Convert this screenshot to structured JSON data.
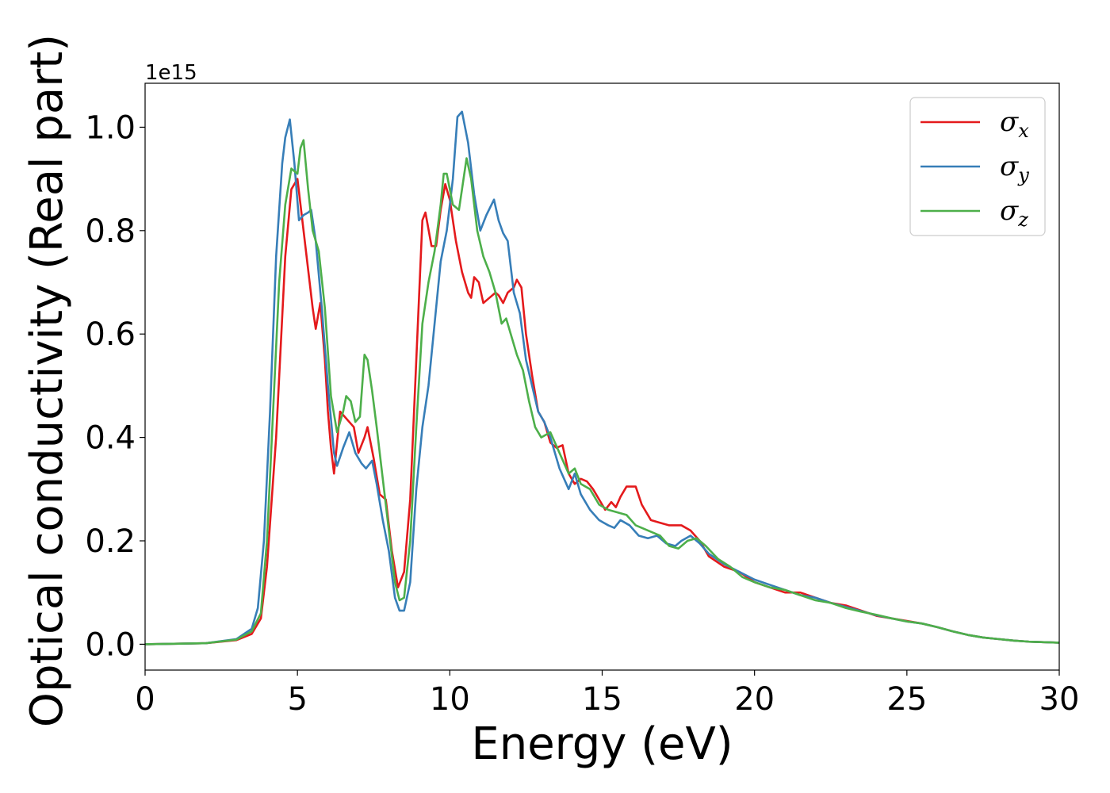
{
  "chart_data": {
    "type": "line",
    "xlabel": "Energy (eV)",
    "ylabel": "Optical conductivity (Real part)",
    "y_offset_text": "1e15",
    "xlim": [
      0,
      30
    ],
    "ylim": [
      -0.05,
      1.085
    ],
    "xticks": [
      0,
      5,
      10,
      15,
      20,
      25,
      30
    ],
    "yticks": [
      0.0,
      0.2,
      0.4,
      0.6,
      0.8,
      1.0
    ],
    "xtick_labels": [
      "0",
      "5",
      "10",
      "15",
      "20",
      "25",
      "30"
    ],
    "ytick_labels": [
      "0.0",
      "0.2",
      "0.4",
      "0.6",
      "0.8",
      "1.0"
    ],
    "grid": false,
    "legend_position": "top-right",
    "series": [
      {
        "name": "σ",
        "subscript": "x",
        "color": "#e41a1c",
        "points": [
          [
            0,
            0
          ],
          [
            2,
            0.002
          ],
          [
            3,
            0.008
          ],
          [
            3.5,
            0.02
          ],
          [
            3.8,
            0.05
          ],
          [
            4.0,
            0.15
          ],
          [
            4.3,
            0.4
          ],
          [
            4.6,
            0.75
          ],
          [
            4.8,
            0.88
          ],
          [
            5.0,
            0.9
          ],
          [
            5.2,
            0.8
          ],
          [
            5.5,
            0.65
          ],
          [
            5.6,
            0.61
          ],
          [
            5.75,
            0.66
          ],
          [
            5.9,
            0.55
          ],
          [
            6.0,
            0.45
          ],
          [
            6.1,
            0.38
          ],
          [
            6.2,
            0.33
          ],
          [
            6.4,
            0.45
          ],
          [
            6.55,
            0.44
          ],
          [
            6.7,
            0.43
          ],
          [
            6.85,
            0.42
          ],
          [
            7.0,
            0.37
          ],
          [
            7.2,
            0.4
          ],
          [
            7.3,
            0.42
          ],
          [
            7.5,
            0.36
          ],
          [
            7.7,
            0.29
          ],
          [
            7.9,
            0.28
          ],
          [
            8.1,
            0.18
          ],
          [
            8.3,
            0.11
          ],
          [
            8.5,
            0.14
          ],
          [
            8.7,
            0.28
          ],
          [
            8.9,
            0.55
          ],
          [
            9.1,
            0.82
          ],
          [
            9.2,
            0.835
          ],
          [
            9.4,
            0.77
          ],
          [
            9.55,
            0.77
          ],
          [
            9.7,
            0.84
          ],
          [
            9.85,
            0.89
          ],
          [
            10.0,
            0.86
          ],
          [
            10.2,
            0.78
          ],
          [
            10.4,
            0.72
          ],
          [
            10.6,
            0.68
          ],
          [
            10.7,
            0.67
          ],
          [
            10.8,
            0.71
          ],
          [
            10.95,
            0.7
          ],
          [
            11.1,
            0.66
          ],
          [
            11.3,
            0.67
          ],
          [
            11.5,
            0.68
          ],
          [
            11.6,
            0.675
          ],
          [
            11.75,
            0.66
          ],
          [
            11.9,
            0.68
          ],
          [
            12.1,
            0.69
          ],
          [
            12.2,
            0.705
          ],
          [
            12.35,
            0.69
          ],
          [
            12.5,
            0.6
          ],
          [
            12.7,
            0.52
          ],
          [
            12.9,
            0.45
          ],
          [
            13.1,
            0.43
          ],
          [
            13.3,
            0.39
          ],
          [
            13.5,
            0.38
          ],
          [
            13.7,
            0.385
          ],
          [
            13.9,
            0.33
          ],
          [
            14.1,
            0.31
          ],
          [
            14.3,
            0.32
          ],
          [
            14.5,
            0.315
          ],
          [
            14.7,
            0.3
          ],
          [
            14.9,
            0.28
          ],
          [
            15.0,
            0.27
          ],
          [
            15.1,
            0.26
          ],
          [
            15.3,
            0.275
          ],
          [
            15.45,
            0.265
          ],
          [
            15.6,
            0.285
          ],
          [
            15.8,
            0.305
          ],
          [
            16.1,
            0.305
          ],
          [
            16.3,
            0.27
          ],
          [
            16.6,
            0.24
          ],
          [
            16.9,
            0.235
          ],
          [
            17.2,
            0.23
          ],
          [
            17.6,
            0.23
          ],
          [
            17.9,
            0.22
          ],
          [
            18.2,
            0.2
          ],
          [
            18.5,
            0.17
          ],
          [
            19,
            0.15
          ],
          [
            19.5,
            0.14
          ],
          [
            20,
            0.12
          ],
          [
            20.5,
            0.11
          ],
          [
            21,
            0.1
          ],
          [
            21.5,
            0.1
          ],
          [
            22,
            0.09
          ],
          [
            22.5,
            0.08
          ],
          [
            23,
            0.075
          ],
          [
            23.5,
            0.065
          ],
          [
            24,
            0.055
          ],
          [
            24.5,
            0.05
          ],
          [
            25,
            0.045
          ],
          [
            25.5,
            0.04
          ],
          [
            26,
            0.033
          ],
          [
            26.5,
            0.025
          ],
          [
            27,
            0.018
          ],
          [
            27.5,
            0.013
          ],
          [
            28,
            0.01
          ],
          [
            28.5,
            0.007
          ],
          [
            29,
            0.005
          ],
          [
            29.5,
            0.004
          ],
          [
            30,
            0.003
          ]
        ]
      },
      {
        "name": "σ",
        "subscript": "y",
        "color": "#377eb8",
        "points": [
          [
            0,
            0
          ],
          [
            2,
            0.002
          ],
          [
            3,
            0.01
          ],
          [
            3.5,
            0.03
          ],
          [
            3.7,
            0.07
          ],
          [
            3.9,
            0.2
          ],
          [
            4.1,
            0.45
          ],
          [
            4.3,
            0.75
          ],
          [
            4.5,
            0.93
          ],
          [
            4.6,
            0.98
          ],
          [
            4.75,
            1.015
          ],
          [
            4.9,
            0.93
          ],
          [
            5.05,
            0.82
          ],
          [
            5.2,
            0.83
          ],
          [
            5.35,
            0.835
          ],
          [
            5.45,
            0.84
          ],
          [
            5.6,
            0.78
          ],
          [
            5.8,
            0.65
          ],
          [
            6.0,
            0.5
          ],
          [
            6.2,
            0.37
          ],
          [
            6.3,
            0.345
          ],
          [
            6.5,
            0.38
          ],
          [
            6.7,
            0.41
          ],
          [
            6.9,
            0.37
          ],
          [
            7.1,
            0.35
          ],
          [
            7.25,
            0.34
          ],
          [
            7.45,
            0.355
          ],
          [
            7.6,
            0.31
          ],
          [
            7.8,
            0.24
          ],
          [
            8.0,
            0.18
          ],
          [
            8.2,
            0.09
          ],
          [
            8.35,
            0.065
          ],
          [
            8.5,
            0.065
          ],
          [
            8.7,
            0.12
          ],
          [
            8.9,
            0.3
          ],
          [
            9.1,
            0.42
          ],
          [
            9.3,
            0.5
          ],
          [
            9.5,
            0.62
          ],
          [
            9.7,
            0.74
          ],
          [
            9.9,
            0.8
          ],
          [
            10.1,
            0.9
          ],
          [
            10.25,
            1.02
          ],
          [
            10.4,
            1.03
          ],
          [
            10.6,
            0.97
          ],
          [
            10.8,
            0.87
          ],
          [
            11.0,
            0.8
          ],
          [
            11.2,
            0.83
          ],
          [
            11.45,
            0.86
          ],
          [
            11.6,
            0.82
          ],
          [
            11.75,
            0.795
          ],
          [
            11.9,
            0.78
          ],
          [
            12.1,
            0.68
          ],
          [
            12.3,
            0.64
          ],
          [
            12.5,
            0.55
          ],
          [
            12.7,
            0.5
          ],
          [
            12.9,
            0.45
          ],
          [
            13.1,
            0.43
          ],
          [
            13.3,
            0.4
          ],
          [
            13.6,
            0.34
          ],
          [
            13.9,
            0.3
          ],
          [
            14.1,
            0.33
          ],
          [
            14.3,
            0.29
          ],
          [
            14.6,
            0.26
          ],
          [
            14.9,
            0.24
          ],
          [
            15.2,
            0.23
          ],
          [
            15.4,
            0.225
          ],
          [
            15.6,
            0.24
          ],
          [
            15.9,
            0.23
          ],
          [
            16.2,
            0.21
          ],
          [
            16.5,
            0.205
          ],
          [
            16.8,
            0.21
          ],
          [
            17.1,
            0.195
          ],
          [
            17.4,
            0.19
          ],
          [
            17.6,
            0.2
          ],
          [
            17.9,
            0.21
          ],
          [
            18.2,
            0.195
          ],
          [
            18.5,
            0.175
          ],
          [
            19,
            0.155
          ],
          [
            19.5,
            0.14
          ],
          [
            20,
            0.125
          ],
          [
            20.5,
            0.115
          ],
          [
            21,
            0.105
          ],
          [
            21.5,
            0.095
          ],
          [
            22,
            0.09
          ],
          [
            22.5,
            0.08
          ],
          [
            23,
            0.072
          ],
          [
            23.5,
            0.064
          ],
          [
            24,
            0.056
          ],
          [
            24.5,
            0.05
          ],
          [
            25,
            0.044
          ],
          [
            25.5,
            0.04
          ],
          [
            26,
            0.033
          ],
          [
            26.5,
            0.025
          ],
          [
            27,
            0.018
          ],
          [
            27.5,
            0.013
          ],
          [
            28,
            0.01
          ],
          [
            28.5,
            0.007
          ],
          [
            29,
            0.005
          ],
          [
            29.5,
            0.004
          ],
          [
            30,
            0.003
          ]
        ]
      },
      {
        "name": "σ",
        "subscript": "z",
        "color": "#4daf4a",
        "points": [
          [
            0,
            0
          ],
          [
            2,
            0.002
          ],
          [
            3,
            0.009
          ],
          [
            3.5,
            0.025
          ],
          [
            3.8,
            0.06
          ],
          [
            4.0,
            0.2
          ],
          [
            4.2,
            0.45
          ],
          [
            4.4,
            0.7
          ],
          [
            4.6,
            0.85
          ],
          [
            4.8,
            0.92
          ],
          [
            5.0,
            0.91
          ],
          [
            5.1,
            0.96
          ],
          [
            5.2,
            0.975
          ],
          [
            5.35,
            0.88
          ],
          [
            5.5,
            0.8
          ],
          [
            5.7,
            0.76
          ],
          [
            5.9,
            0.65
          ],
          [
            6.1,
            0.48
          ],
          [
            6.3,
            0.41
          ],
          [
            6.5,
            0.45
          ],
          [
            6.6,
            0.48
          ],
          [
            6.75,
            0.47
          ],
          [
            6.9,
            0.43
          ],
          [
            7.05,
            0.44
          ],
          [
            7.2,
            0.56
          ],
          [
            7.3,
            0.55
          ],
          [
            7.45,
            0.49
          ],
          [
            7.6,
            0.42
          ],
          [
            7.8,
            0.32
          ],
          [
            8.0,
            0.22
          ],
          [
            8.2,
            0.12
          ],
          [
            8.35,
            0.085
          ],
          [
            8.5,
            0.09
          ],
          [
            8.7,
            0.2
          ],
          [
            8.9,
            0.42
          ],
          [
            9.1,
            0.62
          ],
          [
            9.3,
            0.7
          ],
          [
            9.5,
            0.76
          ],
          [
            9.7,
            0.85
          ],
          [
            9.8,
            0.91
          ],
          [
            9.9,
            0.91
          ],
          [
            10.1,
            0.85
          ],
          [
            10.3,
            0.84
          ],
          [
            10.4,
            0.88
          ],
          [
            10.55,
            0.94
          ],
          [
            10.7,
            0.9
          ],
          [
            10.9,
            0.8
          ],
          [
            11.1,
            0.75
          ],
          [
            11.3,
            0.72
          ],
          [
            11.5,
            0.68
          ],
          [
            11.7,
            0.62
          ],
          [
            11.85,
            0.63
          ],
          [
            12.0,
            0.6
          ],
          [
            12.2,
            0.56
          ],
          [
            12.4,
            0.53
          ],
          [
            12.6,
            0.47
          ],
          [
            12.8,
            0.42
          ],
          [
            13.0,
            0.4
          ],
          [
            13.3,
            0.41
          ],
          [
            13.6,
            0.37
          ],
          [
            13.9,
            0.33
          ],
          [
            14.1,
            0.34
          ],
          [
            14.3,
            0.31
          ],
          [
            14.6,
            0.3
          ],
          [
            14.9,
            0.27
          ],
          [
            15.2,
            0.26
          ],
          [
            15.5,
            0.255
          ],
          [
            15.8,
            0.25
          ],
          [
            16.1,
            0.23
          ],
          [
            16.5,
            0.22
          ],
          [
            16.9,
            0.21
          ],
          [
            17.2,
            0.19
          ],
          [
            17.5,
            0.185
          ],
          [
            17.8,
            0.2
          ],
          [
            18.1,
            0.205
          ],
          [
            18.4,
            0.19
          ],
          [
            18.8,
            0.165
          ],
          [
            19.2,
            0.15
          ],
          [
            19.6,
            0.13
          ],
          [
            20,
            0.12
          ],
          [
            20.5,
            0.11
          ],
          [
            21,
            0.105
          ],
          [
            21.5,
            0.095
          ],
          [
            22,
            0.085
          ],
          [
            22.5,
            0.08
          ],
          [
            23,
            0.07
          ],
          [
            23.5,
            0.063
          ],
          [
            24,
            0.057
          ],
          [
            24.5,
            0.05
          ],
          [
            25,
            0.044
          ],
          [
            25.5,
            0.04
          ],
          [
            26,
            0.033
          ],
          [
            26.5,
            0.025
          ],
          [
            27,
            0.018
          ],
          [
            27.5,
            0.013
          ],
          [
            28,
            0.01
          ],
          [
            28.5,
            0.007
          ],
          [
            29,
            0.005
          ],
          [
            29.5,
            0.004
          ],
          [
            30,
            0.003
          ]
        ]
      }
    ]
  }
}
